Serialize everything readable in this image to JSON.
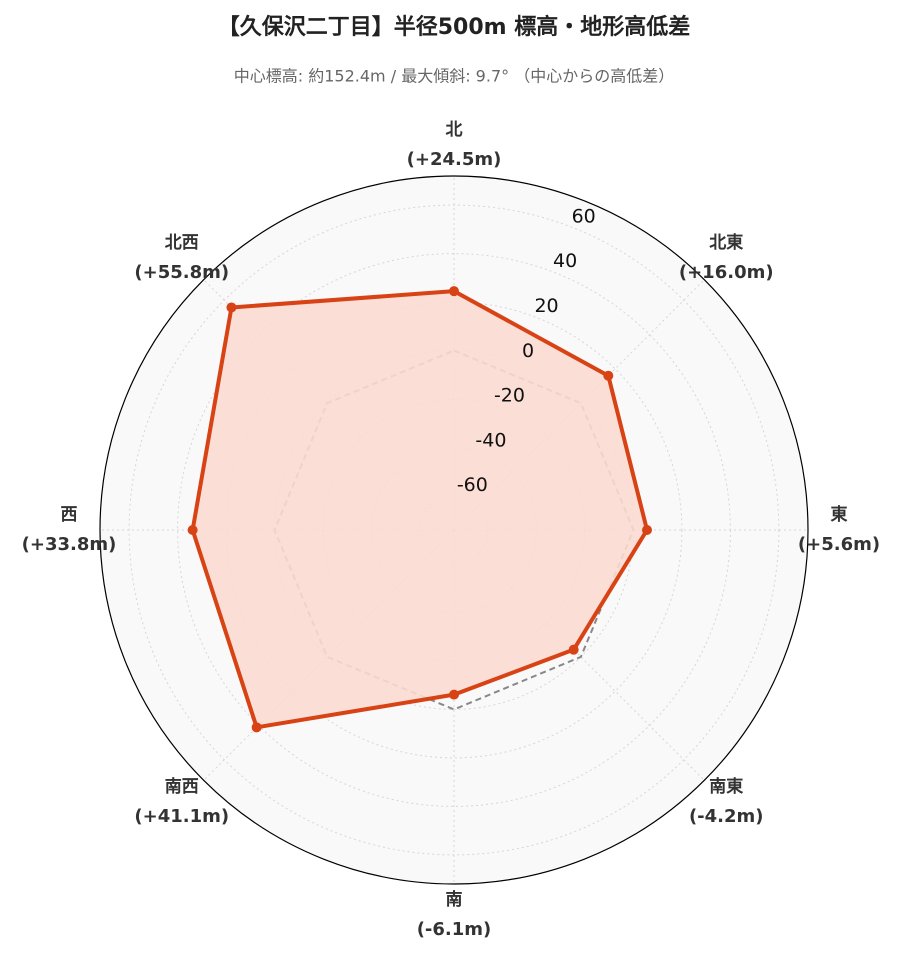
{
  "chart_data": {
    "type": "radar",
    "title": "【久保沢二丁目】半径500m 標高・地形高低差",
    "subtitle": "中心標高: 約152.4m / 最大傾斜: 9.7° （中心からの高低差）",
    "categories": [
      "北",
      "北東",
      "東",
      "南東",
      "南",
      "南西",
      "西",
      "北西"
    ],
    "values": [
      24.5,
      16.0,
      5.6,
      -4.2,
      -6.1,
      41.1,
      33.8,
      55.8
    ],
    "value_labels": [
      "(+24.5m)",
      "(+16.0m)",
      "(+5.6m)",
      "(-4.2m)",
      "(-6.1m)",
      "(+41.1m)",
      "(+33.8m)",
      "(+55.8m)"
    ],
    "color": "#d84315",
    "fill_color": "#fbdcd3",
    "reference": 0,
    "ylim": [
      -74,
      72
    ],
    "yticks": [
      -60,
      -40,
      -20,
      0,
      20,
      40,
      60
    ],
    "grid": true
  }
}
